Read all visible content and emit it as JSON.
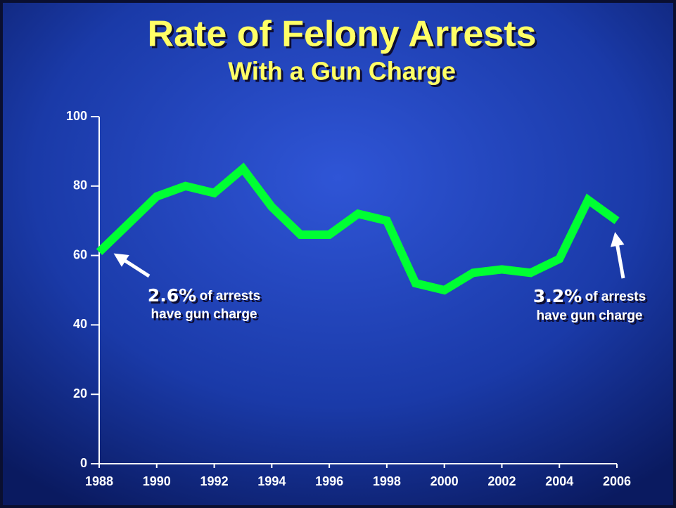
{
  "chart_data": {
    "type": "line",
    "title": "Rate of Felony Arrests",
    "subtitle": "With a Gun Charge",
    "x": [
      1988,
      1989,
      1990,
      1991,
      1992,
      1993,
      1994,
      1995,
      1996,
      1997,
      1998,
      1999,
      2000,
      2001,
      2002,
      2003,
      2004,
      2005,
      2006
    ],
    "series": [
      {
        "name": "Rate of felony arrests with a gun charge",
        "color": "#00ff33",
        "values": [
          61,
          69,
          77,
          80,
          78,
          85,
          74,
          66,
          66,
          72,
          70,
          52,
          50,
          55,
          56,
          55,
          59,
          76,
          70
        ]
      }
    ],
    "xlim": [
      1988,
      2006
    ],
    "xticks": [
      1988,
      1990,
      1992,
      1994,
      1996,
      1998,
      2000,
      2002,
      2004,
      2006
    ],
    "ylim": [
      0,
      100
    ],
    "yticks": [
      0,
      20,
      40,
      60,
      80,
      100
    ],
    "grid": false,
    "annotations": [
      {
        "value": "2.6%",
        "text": "of arrests",
        "line2": "have gun charge"
      },
      {
        "value": "3.2%",
        "text": "of arrests",
        "line2": "have gun charge"
      }
    ]
  }
}
